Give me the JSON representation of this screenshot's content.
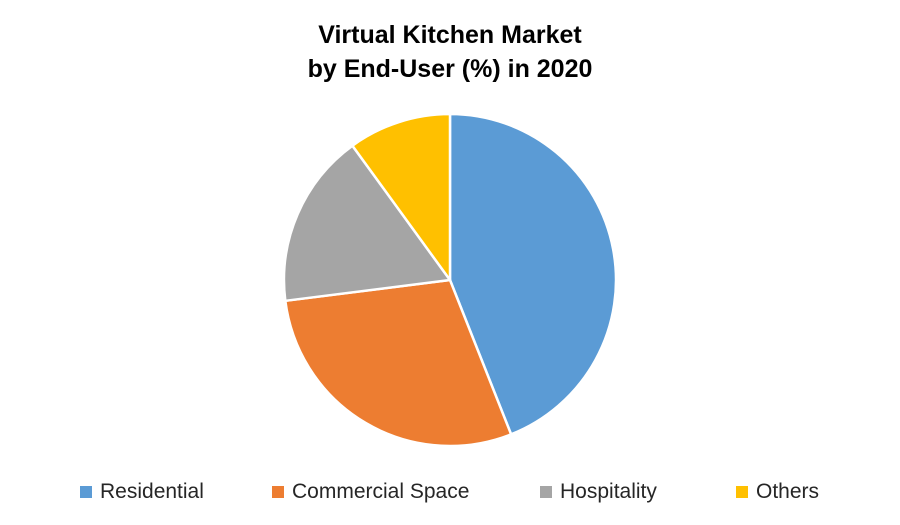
{
  "chart_data": {
    "type": "pie",
    "title_lines": [
      "Virtual Kitchen Market",
      "by End-User (%) in 2020"
    ],
    "categories": [
      "Residential",
      "Commercial Space",
      "Hospitality",
      "Others"
    ],
    "values": [
      44,
      29,
      17,
      10
    ],
    "colors": [
      "#5B9BD5",
      "#ED7D31",
      "#A5A5A5",
      "#FFC000"
    ],
    "legend_position": "bottom",
    "start_angle_deg": 0,
    "direction": "clockwise"
  }
}
